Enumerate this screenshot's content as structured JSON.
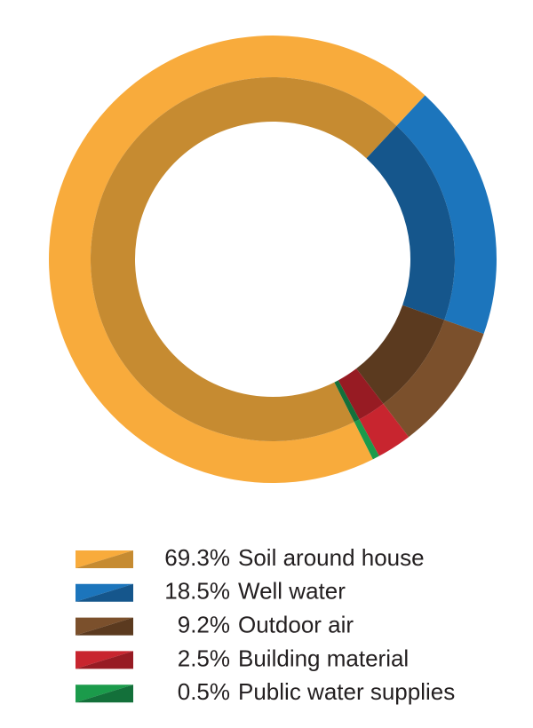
{
  "chart_data": {
    "type": "donut",
    "categories": [
      "Soil around house",
      "Well water",
      "Outdoor air",
      "Building material",
      "Public water supplies"
    ],
    "values": [
      69.3,
      18.5,
      9.2,
      2.5,
      0.5
    ],
    "value_labels": [
      "69.3%",
      "18.5%",
      "9.2%",
      "2.5%",
      "0.5%"
    ],
    "colors": [
      "#f8ab3c",
      "#1c75bc",
      "#7b502c",
      "#c8252f",
      "#1b9b4b"
    ],
    "dark_colors": [
      "#c68b31",
      "#15568c",
      "#5b3a1f",
      "#971b23",
      "#13703a"
    ],
    "legend": "bottom"
  }
}
